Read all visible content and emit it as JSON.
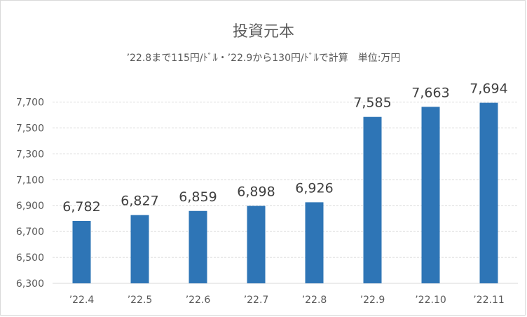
{
  "chart_data": {
    "type": "bar",
    "title": "投資元本",
    "subtitle": "’22.8まで115円/ﾄﾞﾙ・’22.9から130円/ﾄﾞﾙで計算　単位:万円",
    "categories": [
      "’22.4",
      "’22.5",
      "’22.6",
      "’22.7",
      "’22.8",
      "’22.9",
      "’22.10",
      "’22.11"
    ],
    "values": [
      6782,
      6827,
      6859,
      6898,
      6926,
      7585,
      7663,
      7694
    ],
    "data_labels": [
      "6,782",
      "6,827",
      "6,859",
      "6,898",
      "6,926",
      "7,585",
      "7,663",
      "7,694"
    ],
    "ylim": [
      6300,
      7800
    ],
    "yticks": [
      6300,
      6500,
      6700,
      6900,
      7100,
      7300,
      7500,
      7700
    ],
    "ytick_labels": [
      "6,300",
      "6,500",
      "6,700",
      "6,900",
      "7,100",
      "7,300",
      "7,500",
      "7,700"
    ],
    "xlabel": "",
    "ylabel": "",
    "grid": true,
    "legend": "none",
    "bar_color": "#2e75b6"
  }
}
